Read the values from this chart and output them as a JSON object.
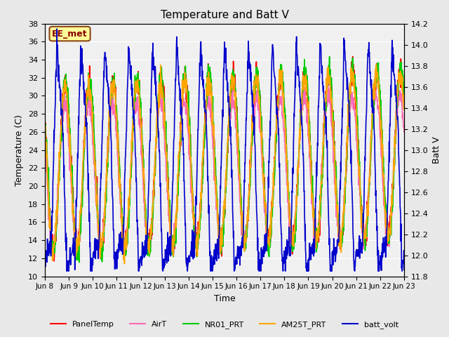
{
  "title": "Temperature and Batt V",
  "xlabel": "Time",
  "ylabel_left": "Temperature (C)",
  "ylabel_right": "Batt V",
  "annotation": "EE_met",
  "annotation_color": "#8B0000",
  "annotation_bg": "#FFFF99",
  "annotation_border": "#8B4513",
  "ylim_left": [
    10,
    38
  ],
  "ylim_right": [
    11.8,
    14.2
  ],
  "yticks_left": [
    10,
    12,
    14,
    16,
    18,
    20,
    22,
    24,
    26,
    28,
    30,
    32,
    34,
    36,
    38
  ],
  "yticks_right": [
    11.8,
    12.0,
    12.2,
    12.4,
    12.6,
    12.8,
    13.0,
    13.2,
    13.4,
    13.6,
    13.8,
    14.0,
    14.2
  ],
  "xtick_labels": [
    "Jun 8",
    "Jun 9",
    "Jun 10",
    "Jun 11",
    "Jun 12",
    "Jun 13",
    "Jun 14",
    "Jun 15",
    "Jun 16",
    "Jun 17",
    "Jun 18",
    "Jun 19",
    "Jun 20",
    "Jun 21",
    "Jun 22",
    "Jun 23"
  ],
  "n_days": 15,
  "series": {
    "PanelTemp": {
      "color": "#FF0000",
      "lw": 1.2
    },
    "AirT": {
      "color": "#FF69B4",
      "lw": 1.2
    },
    "NR01_PRT": {
      "color": "#00CC00",
      "lw": 1.2
    },
    "AM25T_PRT": {
      "color": "#FFA500",
      "lw": 1.2
    },
    "batt_volt": {
      "color": "#0000CC",
      "lw": 1.2
    }
  },
  "bg_color": "#E8E8E8",
  "plot_bg": "#F0F0F0",
  "grid_color": "#FFFFFF"
}
